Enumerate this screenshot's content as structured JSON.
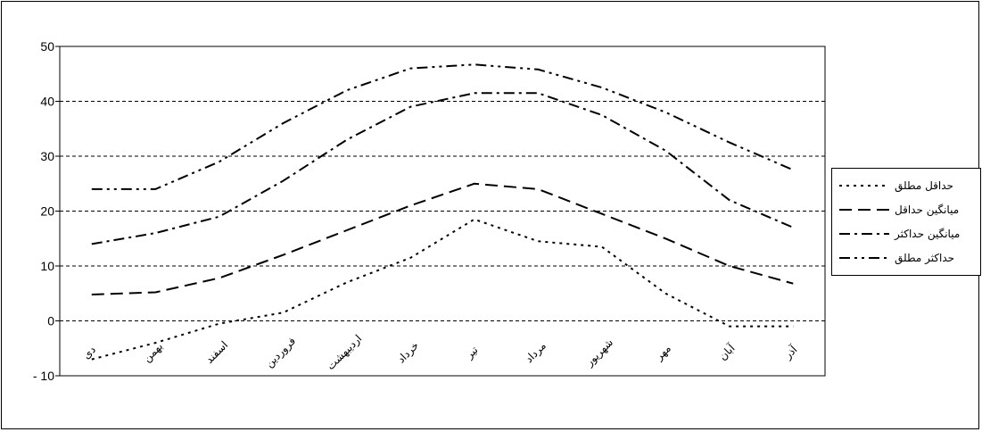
{
  "chart_data": {
    "type": "line",
    "title": "",
    "xlabel": "",
    "ylabel": "",
    "ylim": [
      -10,
      50
    ],
    "yticks": [
      50,
      40,
      30,
      20,
      10,
      0,
      -10
    ],
    "ytick_labels": [
      "50",
      "40",
      "30",
      "20",
      "10",
      "0",
      "- 10"
    ],
    "grid": "horizontal dashed",
    "legend_position": "right",
    "categories": [
      "دی",
      "بهمن",
      "اسفند",
      "فروردین",
      "اردیبهشت",
      "خرداد",
      "تیر",
      "مرداد",
      "شهریور",
      "مهر",
      "آبان",
      "آذر"
    ],
    "series": [
      {
        "name": "حداقل مطلق",
        "dash": "dotted",
        "values": [
          -7,
          -4,
          -0.5,
          1.5,
          7,
          11.5,
          18.5,
          14.5,
          13.5,
          5,
          -1,
          -1
        ]
      },
      {
        "name": "میانگین حداقل",
        "dash": "long-dash",
        "values": [
          4.8,
          5.2,
          7.8,
          12,
          16.5,
          21,
          25,
          24,
          19.5,
          15,
          10,
          6.8
        ]
      },
      {
        "name": "میانگین حداکثر",
        "dash": "dash-dot",
        "values": [
          14,
          16,
          19,
          25.5,
          33,
          39,
          41.5,
          41.5,
          37.5,
          31,
          22,
          17
        ]
      },
      {
        "name": "حداکثر مطلق",
        "dash": "dash-dot-dot",
        "values": [
          24,
          24,
          29,
          36,
          42,
          46,
          46.7,
          45.8,
          42.5,
          38,
          32.5,
          27.5
        ]
      }
    ]
  }
}
